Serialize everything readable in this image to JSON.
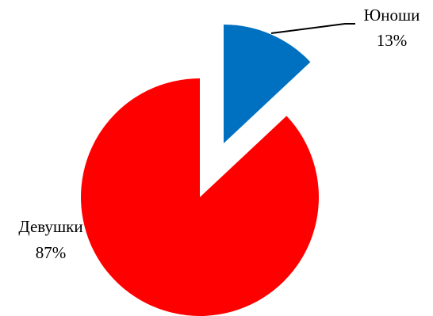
{
  "chart_data": {
    "type": "pie",
    "title": "",
    "exploded": true,
    "legend": "none",
    "slices": [
      {
        "label": "Юноши",
        "value": 13,
        "value_label": "13%",
        "color": "#0070C0"
      },
      {
        "label": "Девушки",
        "value": 87,
        "value_label": "87%",
        "color": "#FF0000"
      }
    ]
  }
}
